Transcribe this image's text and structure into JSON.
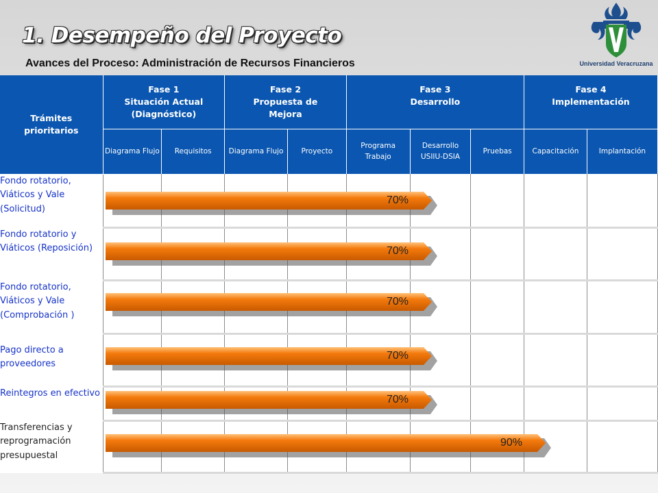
{
  "header": {
    "title": "1. Desempeño del Proyecto",
    "subtitle": "Avances del Proceso:  Administración de Recursos Financieros",
    "logo_text": "Universidad Veracruzana"
  },
  "table": {
    "corner_label": "Trámites prioritarios",
    "phases": [
      {
        "label": "Fase 1\nSituación Actual (Diagnóstico)"
      },
      {
        "label": "Fase 2\nPropuesta de Mejora"
      },
      {
        "label": "Fase 3\nDesarrollo"
      },
      {
        "label": "Fase 4\nImplementación"
      }
    ],
    "subcolumns": [
      "Diagrama Flujo",
      "Requisitos",
      "Diagrama Flujo",
      "Proyecto",
      "Programa Trabajo",
      "Desarrollo USIIU-DSIA",
      "Pruebas",
      "Capacitación",
      "Implantación"
    ],
    "rows": [
      {
        "label": "Fondo rotatorio, Viáticos y Vale (Solicitud)",
        "progress": "70%"
      },
      {
        "label": "Fondo rotatorio y Viáticos (Reposición)",
        "progress": "70%"
      },
      {
        "label": "Fondo rotatorio, Viáticos y Vale (Comprobación )",
        "progress": "70%"
      },
      {
        "label": "Pago directo a proveedores",
        "progress": "70%"
      },
      {
        "label": "Reintegros en efectivo",
        "progress": "70%"
      },
      {
        "label": "Transferencias y reprogramación presupuestal",
        "progress": "90%"
      }
    ]
  },
  "colors": {
    "header_blue": "#0a56b0",
    "bar_orange": "#f47a0c",
    "label_blue": "#1633c8"
  }
}
